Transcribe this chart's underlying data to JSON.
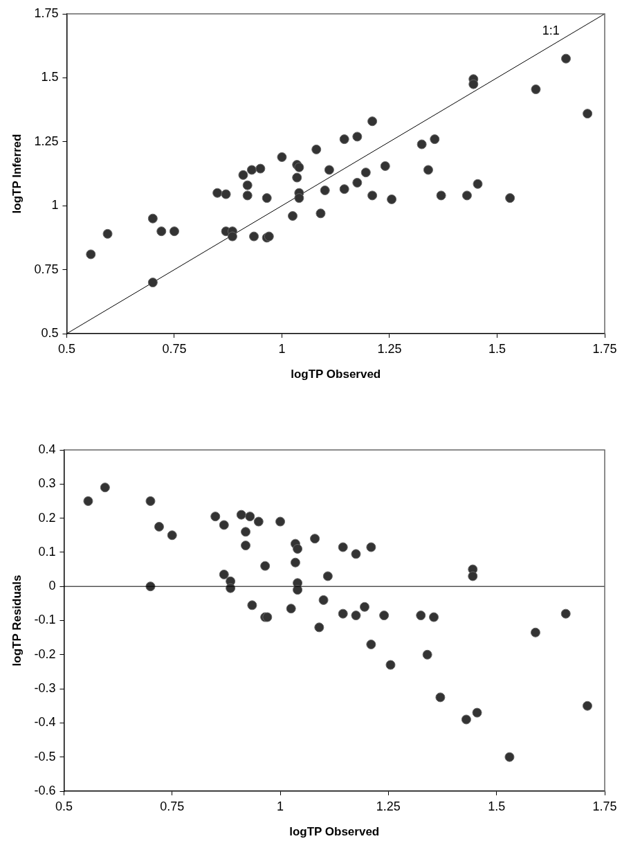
{
  "chart_data": [
    {
      "type": "scatter",
      "xlabel": "logTP Observed",
      "ylabel": "logTP Inferred",
      "xlim": [
        0.5,
        1.75
      ],
      "ylim": [
        0.5,
        1.75
      ],
      "xticks": [
        0.5,
        0.75,
        1,
        1.25,
        1.5,
        1.75
      ],
      "yticks": [
        0.5,
        0.75,
        1,
        1.25,
        1.5,
        1.75
      ],
      "grid": false,
      "legend": false,
      "marker": "circle",
      "annotations": [
        "1:1"
      ],
      "series": [
        {
          "color": "#333333",
          "x": [
            0.556,
            0.595,
            0.7,
            0.7,
            0.72,
            0.75,
            0.85,
            0.87,
            0.87,
            0.885,
            0.885,
            0.91,
            0.92,
            0.92,
            0.93,
            0.935,
            0.95,
            0.965,
            0.965,
            0.97,
            1.0,
            1.025,
            1.035,
            1.04,
            1.035,
            1.04,
            1.04,
            1.08,
            1.09,
            1.1,
            1.11,
            1.145,
            1.145,
            1.175,
            1.175,
            1.195,
            1.21,
            1.21,
            1.24,
            1.255,
            1.325,
            1.34,
            1.355,
            1.37,
            1.43,
            1.445,
            1.445,
            1.455,
            1.53,
            1.59,
            1.66,
            1.71
          ],
          "values": [
            0.81,
            0.89,
            0.95,
            0.7,
            0.9,
            0.9,
            1.05,
            1.045,
            0.9,
            0.9,
            0.88,
            1.12,
            1.08,
            1.04,
            1.14,
            0.88,
            1.145,
            0.875,
            1.03,
            0.88,
            1.19,
            0.96,
            1.16,
            1.15,
            1.11,
            1.05,
            1.03,
            1.22,
            0.97,
            1.06,
            1.14,
            1.26,
            1.065,
            1.27,
            1.09,
            1.13,
            1.33,
            1.04,
            1.155,
            1.025,
            1.24,
            1.14,
            1.26,
            1.04,
            1.04,
            1.495,
            1.475,
            1.085,
            1.03,
            1.455,
            1.575,
            1.36
          ]
        },
        {
          "type": "line",
          "color": "#000000",
          "marker": "none",
          "x": [
            0.5,
            1.75
          ],
          "values": [
            0.5,
            1.75
          ]
        }
      ]
    },
    {
      "type": "scatter",
      "xlabel": "logTP Observed",
      "ylabel": "logTP Residuals",
      "xlim": [
        0.5,
        1.75
      ],
      "ylim": [
        -0.6,
        0.4
      ],
      "xticks": [
        0.5,
        0.75,
        1,
        1.25,
        1.5,
        1.75
      ],
      "yticks": [
        -0.6,
        -0.5,
        -0.4,
        -0.3,
        -0.2,
        -0.1,
        0,
        0.1,
        0.2,
        0.3,
        0.4
      ],
      "grid": false,
      "legend": false,
      "marker": "circle",
      "ref_lines": [
        {
          "axis": "y",
          "value": 0,
          "color": "#000000"
        }
      ],
      "series": [
        {
          "color": "#333333",
          "x": [
            0.556,
            0.595,
            0.7,
            0.7,
            0.72,
            0.75,
            0.85,
            0.87,
            0.87,
            0.885,
            0.885,
            0.91,
            0.92,
            0.92,
            0.93,
            0.935,
            0.95,
            0.965,
            0.965,
            0.97,
            1.0,
            1.025,
            1.035,
            1.04,
            1.035,
            1.04,
            1.04,
            1.08,
            1.09,
            1.1,
            1.11,
            1.145,
            1.145,
            1.175,
            1.175,
            1.195,
            1.21,
            1.21,
            1.24,
            1.255,
            1.325,
            1.34,
            1.355,
            1.37,
            1.43,
            1.445,
            1.445,
            1.455,
            1.53,
            1.59,
            1.66,
            1.71
          ],
          "values": [
            0.25,
            0.29,
            0.25,
            0.0,
            0.175,
            0.15,
            0.205,
            0.18,
            0.035,
            0.015,
            -0.005,
            0.21,
            0.16,
            0.12,
            0.205,
            -0.055,
            0.19,
            -0.09,
            0.06,
            -0.09,
            0.19,
            -0.065,
            0.125,
            0.11,
            0.07,
            0.01,
            -0.01,
            0.14,
            -0.12,
            -0.04,
            0.03,
            0.115,
            -0.08,
            0.095,
            -0.085,
            -0.06,
            0.115,
            -0.17,
            -0.085,
            -0.23,
            -0.085,
            -0.2,
            -0.09,
            -0.325,
            -0.39,
            0.05,
            0.03,
            -0.37,
            -0.5,
            -0.135,
            -0.08,
            -0.35
          ]
        }
      ]
    }
  ]
}
